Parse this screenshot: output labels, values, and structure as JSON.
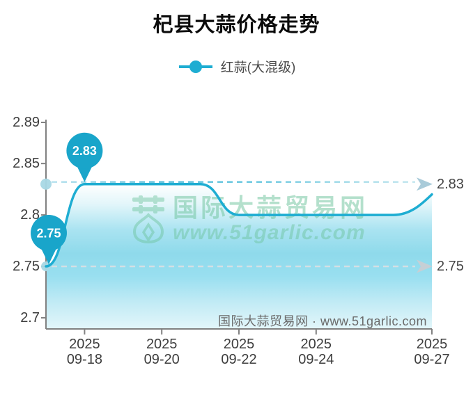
{
  "title": "杞县大蒜价格走势",
  "legend": {
    "label": "红蒜(大混级)"
  },
  "watermark": {
    "brand": "国际大蒜贸易网",
    "site": "www.51garlic.com"
  },
  "footer_note": "国际大蒜贸易网 · www.51garlic.com",
  "colors": {
    "line": "#1eadd2",
    "balloon": "#19a5ca",
    "balloon_text": "#ffffff",
    "axis": "#818181",
    "tick_text": "#3d3d3d",
    "max_dash_mid": "#4cbbd9",
    "min_dash": "#d5dfe4",
    "max_arrow": "#a9cbd9",
    "min_arrow": "#c6cfd5",
    "axis_dot": "#a8d8e5",
    "watermark_green": "#6cc39b"
  },
  "chart_data": {
    "type": "line",
    "title": "杞县大蒜价格走势",
    "series": [
      {
        "name": "红蒜(大混级)",
        "x": [
          "2025-09-17",
          "2025-09-18",
          "2025-09-19",
          "2025-09-20",
          "2025-09-21",
          "2025-09-22",
          "2025-09-23",
          "2025-09-24",
          "2025-09-25",
          "2025-09-26",
          "2025-09-27"
        ],
        "values": [
          2.75,
          2.83,
          2.83,
          2.83,
          2.83,
          2.8,
          2.8,
          2.8,
          2.8,
          2.8,
          2.82
        ]
      }
    ],
    "ylim": [
      2.7,
      2.89
    ],
    "y_ticks": [
      2.89,
      2.85,
      2.8,
      2.75,
      2.7
    ],
    "y_tick_labels": [
      "2.89",
      "2.85",
      "2.8",
      "2.75",
      "2.7"
    ],
    "x_tick_dates": [
      "2025-09-18",
      "2025-09-20",
      "2025-09-22",
      "2025-09-24",
      "2025-09-27"
    ],
    "x_tick_labels": [
      "2025\n09-18",
      "2025\n09-20",
      "2025\n09-22",
      "2025\n09-24",
      "2025\n09-27"
    ],
    "grid": false,
    "legend_position": "top",
    "balloons": [
      {
        "x": "2025-09-17",
        "value": 2.75,
        "label": "2.75",
        "dx": 4
      },
      {
        "x": "2025-09-18",
        "value": 2.83,
        "label": "2.83",
        "dx": 0
      }
    ],
    "ref_lines": [
      {
        "value": 2.83,
        "label": "2.83",
        "kind": "max"
      },
      {
        "value": 2.75,
        "label": "2.75",
        "kind": "min"
      }
    ]
  }
}
